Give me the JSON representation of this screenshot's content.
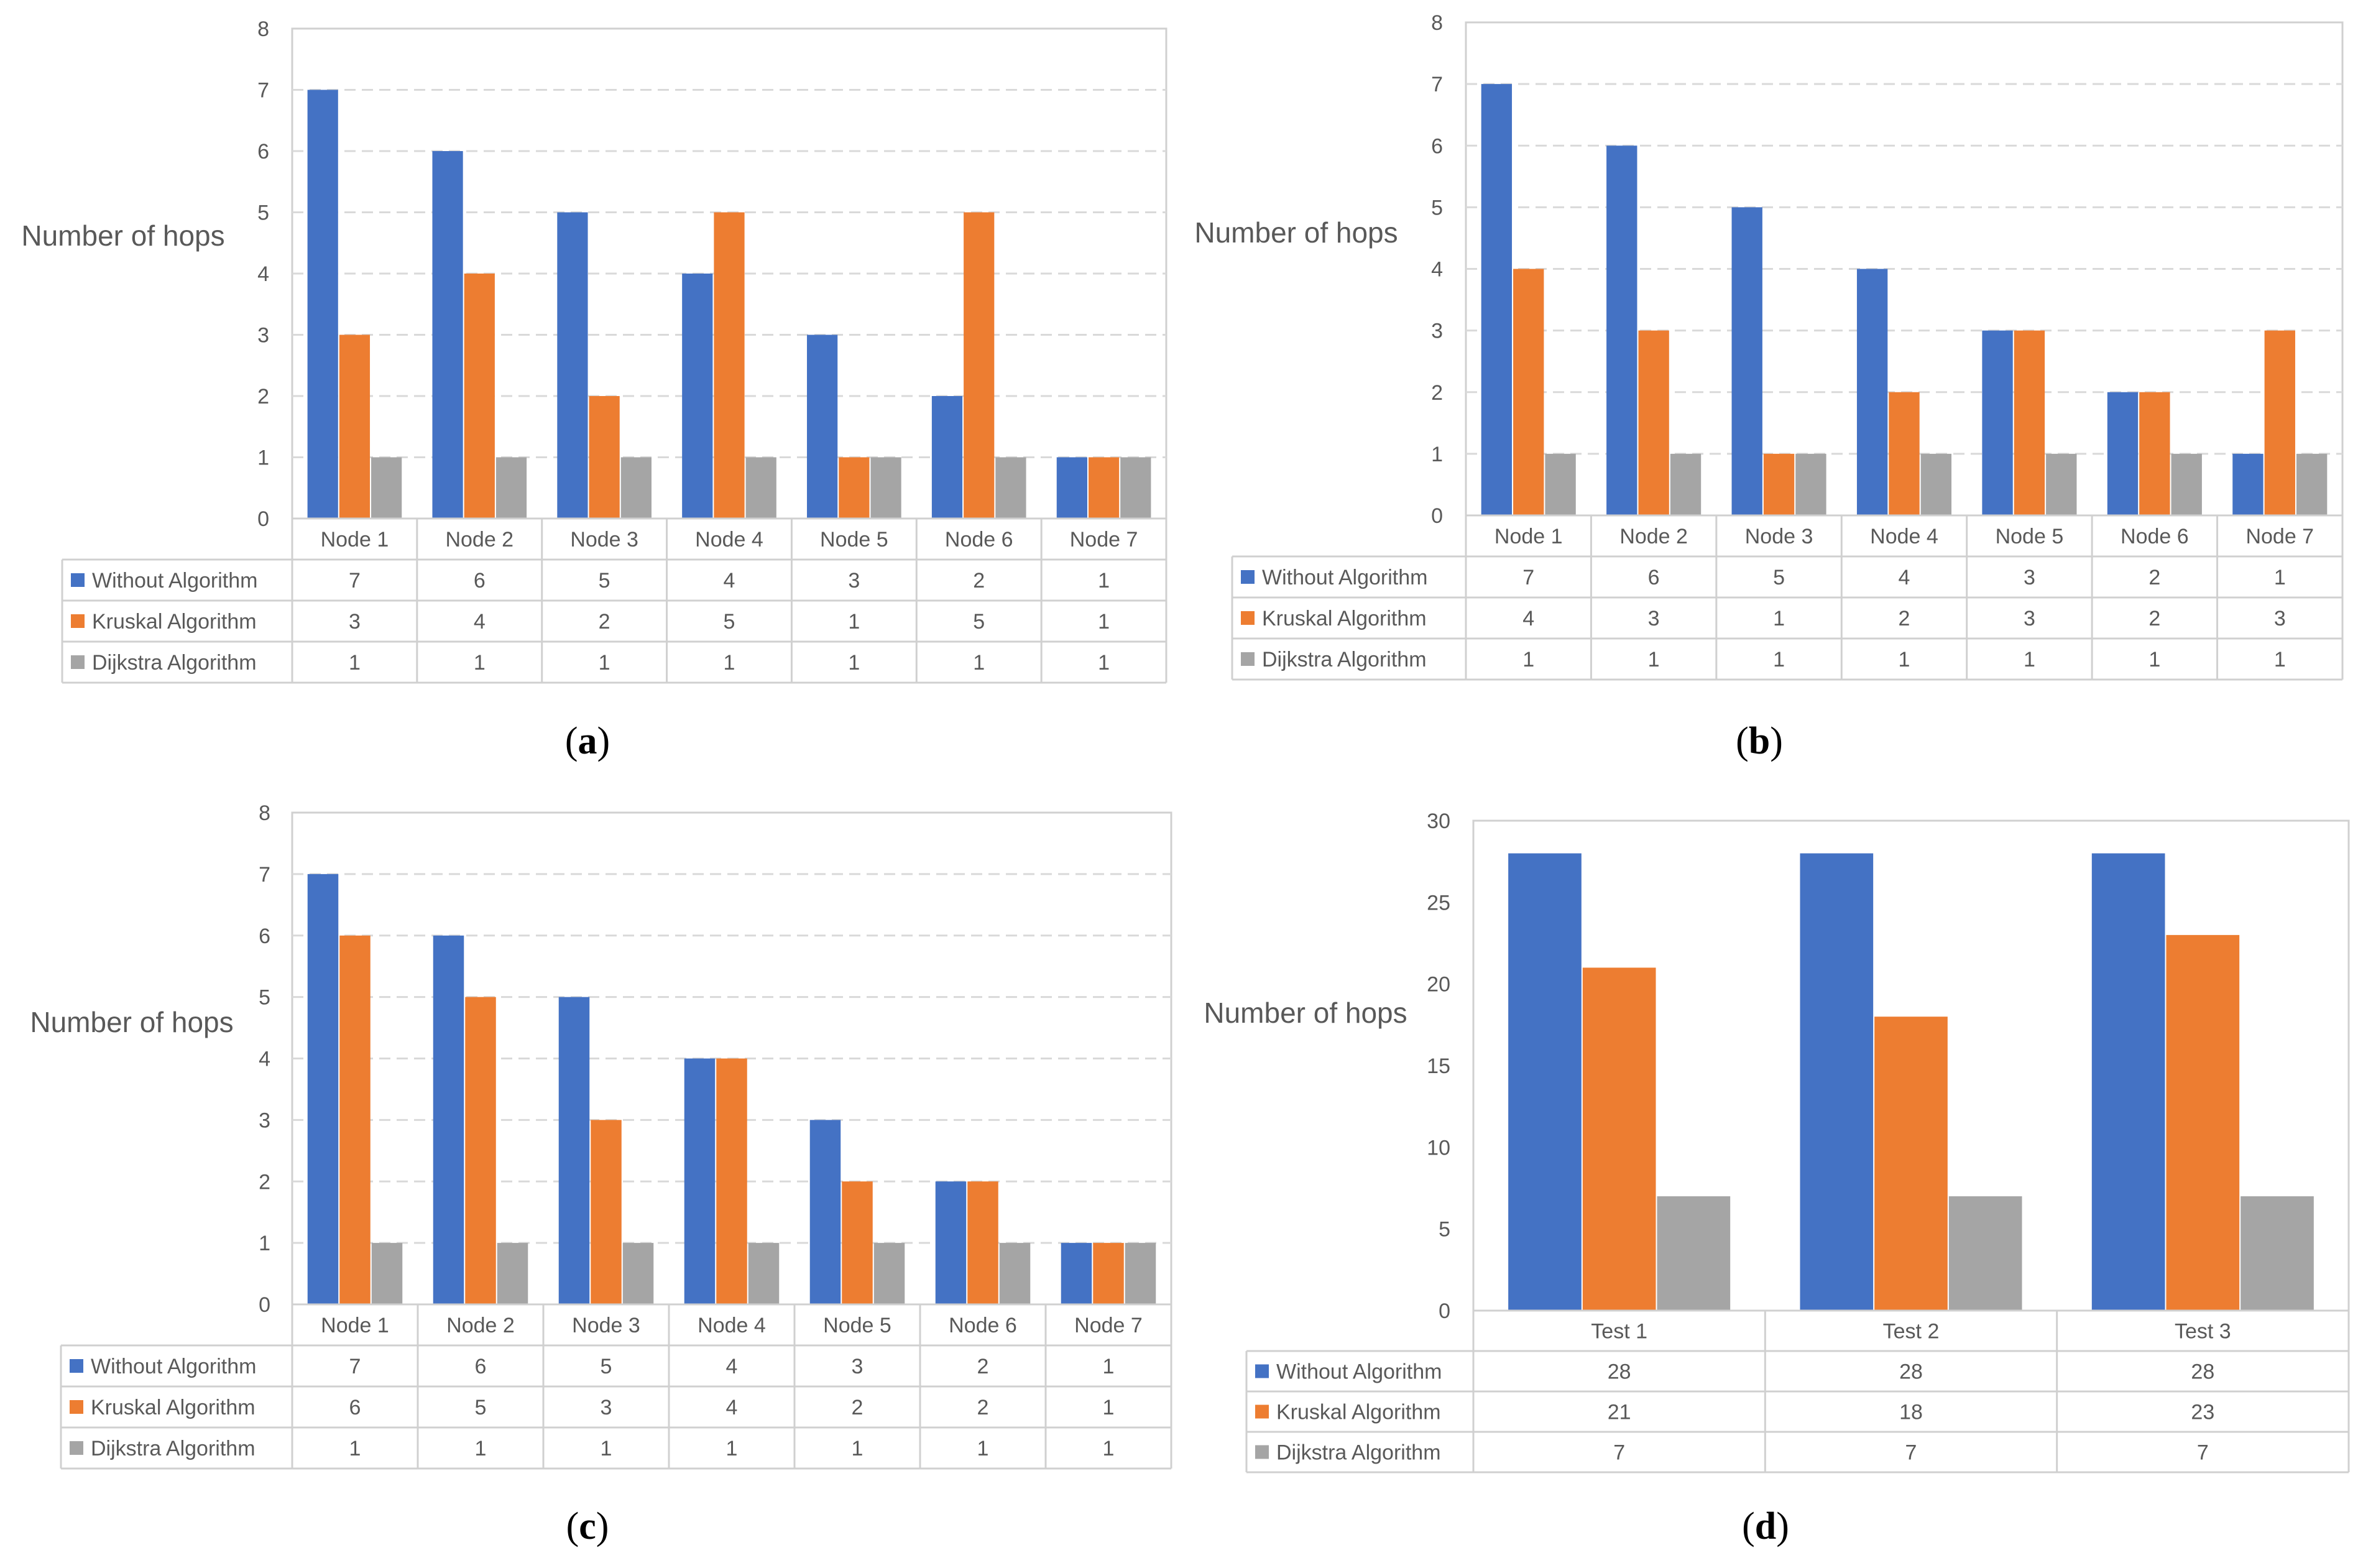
{
  "colors": {
    "series": [
      "#4472C4",
      "#ED7D31",
      "#A5A5A5"
    ],
    "grid": "#D9D9D9",
    "border": "#D0D0D0",
    "text": "#595959",
    "caption": "#000000"
  },
  "chart_data": [
    {
      "type": "bar",
      "panel_label": "a",
      "ylabel": "Number of hops",
      "categories": [
        "Node 1",
        "Node 2",
        "Node 3",
        "Node 4",
        "Node 5",
        "Node 6",
        "Node 7"
      ],
      "ylim": [
        0,
        8
      ],
      "yticks": [
        0,
        1,
        2,
        3,
        4,
        5,
        6,
        7,
        8
      ],
      "grid": true,
      "legend": "data-table",
      "series": [
        {
          "name": "Without Algorithm",
          "values": [
            7,
            6,
            5,
            4,
            3,
            2,
            1
          ]
        },
        {
          "name": "Kruskal Algorithm",
          "values": [
            3,
            4,
            2,
            5,
            1,
            5,
            1
          ]
        },
        {
          "name": "Dijkstra Algorithm",
          "values": [
            1,
            1,
            1,
            1,
            1,
            1,
            1
          ]
        }
      ]
    },
    {
      "type": "bar",
      "panel_label": "b",
      "ylabel": "Number of hops",
      "categories": [
        "Node 1",
        "Node 2",
        "Node 3",
        "Node 4",
        "Node 5",
        "Node 6",
        "Node 7"
      ],
      "ylim": [
        0,
        8
      ],
      "yticks": [
        0,
        1,
        2,
        3,
        4,
        5,
        6,
        7,
        8
      ],
      "grid": true,
      "legend": "data-table",
      "series": [
        {
          "name": "Without Algorithm",
          "values": [
            7,
            6,
            5,
            4,
            3,
            2,
            1
          ]
        },
        {
          "name": "Kruskal Algorithm",
          "values": [
            4,
            3,
            1,
            2,
            3,
            2,
            3
          ]
        },
        {
          "name": "Dijkstra Algorithm",
          "values": [
            1,
            1,
            1,
            1,
            1,
            1,
            1
          ]
        }
      ]
    },
    {
      "type": "bar",
      "panel_label": "c",
      "ylabel": "Number of hops",
      "categories": [
        "Node 1",
        "Node 2",
        "Node 3",
        "Node 4",
        "Node 5",
        "Node 6",
        "Node 7"
      ],
      "ylim": [
        0,
        8
      ],
      "yticks": [
        0,
        1,
        2,
        3,
        4,
        5,
        6,
        7,
        8
      ],
      "grid": true,
      "legend": "data-table",
      "series": [
        {
          "name": "Without Algorithm",
          "values": [
            7,
            6,
            5,
            4,
            3,
            2,
            1
          ]
        },
        {
          "name": "Kruskal Algorithm",
          "values": [
            6,
            5,
            3,
            4,
            2,
            2,
            1
          ]
        },
        {
          "name": "Dijkstra Algorithm",
          "values": [
            1,
            1,
            1,
            1,
            1,
            1,
            1
          ]
        }
      ]
    },
    {
      "type": "bar",
      "panel_label": "d",
      "ylabel": "Number of hops",
      "categories": [
        "Test 1",
        "Test 2",
        "Test 3"
      ],
      "ylim": [
        0,
        30
      ],
      "yticks": [
        0,
        5,
        10,
        15,
        20,
        25,
        30
      ],
      "grid": false,
      "legend": "data-table",
      "series": [
        {
          "name": "Without Algorithm",
          "values": [
            28,
            28,
            28
          ]
        },
        {
          "name": "Kruskal Algorithm",
          "values": [
            21,
            18,
            23
          ]
        },
        {
          "name": "Dijkstra Algorithm",
          "values": [
            7,
            7,
            7
          ]
        }
      ]
    }
  ]
}
